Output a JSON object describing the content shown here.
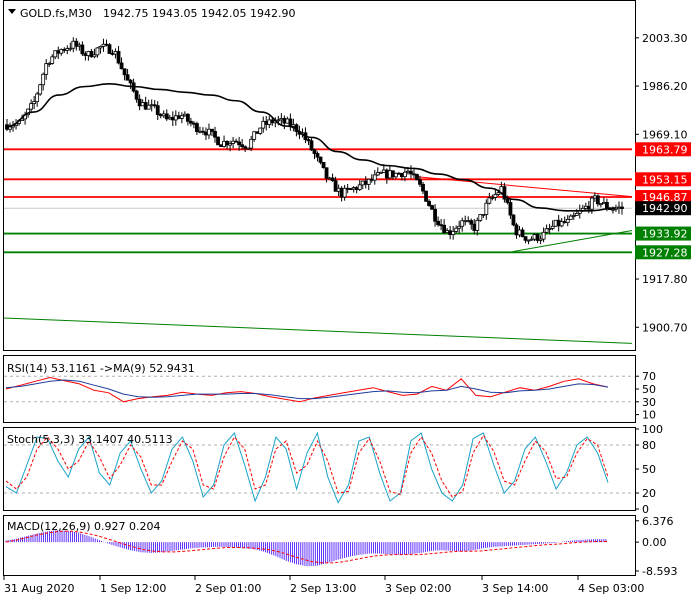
{
  "header": {
    "symbol": "GOLD.fs,M30",
    "ohlc": "1942.75 1943.05 1942.05 1942.90"
  },
  "colors": {
    "bull": "#000000",
    "bear": "#000000",
    "ma": "#000000",
    "resistance": "#ff0000",
    "support": "#008000",
    "current_price_bg": "#000000",
    "grid": "#c0c0c0",
    "rsi_main": "#1e3c9c",
    "rsi_signal": "#ff0000",
    "stoch_main": "#1aa3c9",
    "stoch_signal": "#ff0000",
    "macd_hist": "#3b00ff",
    "macd_signal": "#ff0000"
  },
  "chart_data": [
    {
      "type": "candlestick",
      "panel": "price",
      "title": "GOLD.fs,M30",
      "ylim": [
        1893,
        2016
      ],
      "y_ticks": [
        2003.3,
        1986.2,
        1969.1,
        1917.8,
        1900.7
      ],
      "x_ticks": [
        "31 Aug 2020",
        "1 Sep 12:00",
        "2 Sep 01:00",
        "2 Sep 13:00",
        "3 Sep 02:00",
        "3 Sep 14:00",
        "4 Sep 03:00"
      ],
      "anchor_prices": [
        1972.5,
        1973,
        1980,
        1995,
        1999,
        2001,
        1997,
        2000,
        1999,
        1988,
        1980,
        1978,
        1974,
        1976,
        1972,
        1970,
        1966,
        1967,
        1965,
        1972,
        1974,
        1973,
        1970,
        1962,
        1953,
        1948,
        1950,
        1952,
        1955,
        1955,
        1956,
        1950,
        1940,
        1934,
        1938,
        1936,
        1945,
        1950,
        1935,
        1932,
        1933,
        1937,
        1938,
        1942,
        1946,
        1943,
        1942.9
      ],
      "moving_average": [
        1972,
        1977,
        1983,
        1986,
        1987,
        1986,
        1985,
        1984,
        1983,
        1981,
        1977,
        1972,
        1968,
        1963,
        1960,
        1958,
        1957,
        1955,
        1953,
        1950,
        1946,
        1943,
        1942,
        1942,
        1943
      ],
      "levels": [
        {
          "name": "resistance-3",
          "value": 1963.79,
          "label": "1963.79",
          "kind": "resistance"
        },
        {
          "name": "resistance-2",
          "value": 1953.15,
          "label": "1953.15",
          "kind": "resistance"
        },
        {
          "name": "resistance-1",
          "value": 1946.87,
          "label": "1946.87",
          "kind": "resistance"
        },
        {
          "name": "support-1",
          "value": 1933.92,
          "label": "1933.92",
          "kind": "support"
        },
        {
          "name": "support-2",
          "value": 1927.28,
          "label": "1927.28",
          "kind": "support"
        }
      ],
      "current_price": {
        "value": 1942.9,
        "label": "1942.90"
      },
      "trendlines": [
        {
          "name": "descending-resistance",
          "color": "#ff0000",
          "from": [
            0.66,
            1954.0
          ],
          "to": [
            1.0,
            1947.0
          ]
        },
        {
          "name": "ascending-support",
          "color": "#008000",
          "from": [
            0.81,
            1927.5
          ],
          "to": [
            1.0,
            1935.0
          ]
        },
        {
          "name": "long-channel",
          "color": "#008000",
          "from": [
            0.0,
            1904.0
          ],
          "to": [
            1.0,
            1895.0
          ]
        }
      ]
    },
    {
      "type": "line",
      "panel": "rsi",
      "title": "RSI(14) 53.1161  ->MA(9) 52.9431",
      "ylim": [
        0,
        100
      ],
      "y_ticks": [
        70,
        50,
        30,
        10
      ],
      "levels": [
        70,
        30
      ],
      "series": [
        {
          "name": "RSI(14)",
          "values": [
            50,
            56,
            62,
            68,
            63,
            58,
            48,
            44,
            30,
            35,
            38,
            40,
            45,
            42,
            40,
            44,
            46,
            43,
            38,
            34,
            30,
            36,
            40,
            44,
            48,
            52,
            46,
            40,
            42,
            54,
            48,
            66,
            40,
            38,
            45,
            52,
            48,
            54,
            62,
            66,
            58,
            53
          ]
        },
        {
          "name": "MA(9)",
          "values": [
            52,
            54,
            58,
            62,
            64,
            62,
            56,
            50,
            42,
            38,
            37,
            38,
            40,
            42,
            42,
            42,
            43,
            43,
            41,
            38,
            35,
            35,
            37,
            40,
            43,
            46,
            47,
            45,
            44,
            47,
            48,
            54,
            50,
            45,
            44,
            47,
            48,
            50,
            54,
            58,
            57,
            53
          ]
        }
      ]
    },
    {
      "type": "line",
      "panel": "stochastic",
      "title": "Stoch(5,3,3) 33.1407 40.5113",
      "ylim": [
        0,
        100
      ],
      "y_ticks": [
        100,
        80,
        50,
        20,
        0
      ],
      "levels": [
        80,
        20
      ],
      "series": [
        {
          "name": "main",
          "values": [
            28,
            20,
            55,
            90,
            88,
            60,
            40,
            75,
            90,
            45,
            30,
            70,
            85,
            50,
            20,
            35,
            75,
            90,
            60,
            15,
            30,
            80,
            95,
            55,
            10,
            40,
            90,
            75,
            25,
            70,
            95,
            40,
            8,
            30,
            85,
            90,
            45,
            10,
            20,
            85,
            95,
            50,
            20,
            10,
            30,
            88,
            95,
            55,
            20,
            35,
            75,
            90,
            60,
            25,
            45,
            80,
            90,
            70,
            33
          ]
        },
        {
          "name": "signal",
          "values": [
            35,
            25,
            40,
            75,
            90,
            75,
            50,
            60,
            85,
            65,
            38,
            55,
            80,
            65,
            30,
            30,
            60,
            85,
            75,
            30,
            25,
            65,
            90,
            75,
            25,
            30,
            75,
            85,
            45,
            55,
            85,
            60,
            20,
            22,
            70,
            88,
            60,
            22,
            18,
            70,
            90,
            70,
            35,
            15,
            22,
            70,
            92,
            72,
            35,
            30,
            60,
            85,
            72,
            38,
            40,
            70,
            88,
            80,
            40
          ]
        }
      ]
    },
    {
      "type": "bar",
      "panel": "macd",
      "title": "MACD(12,26,9) 0.927 0.204",
      "ylim": [
        -9.5,
        7.5
      ],
      "y_ticks": [
        6.376,
        0.0,
        -8.593
      ],
      "hist": [
        0.5,
        1.0,
        1.8,
        2.6,
        3.2,
        3.6,
        3.4,
        2.8,
        1.8,
        0.6,
        -0.6,
        -1.6,
        -2.4,
        -3.0,
        -3.2,
        -3.0,
        -2.6,
        -2.2,
        -1.8,
        -1.6,
        -1.4,
        -1.4,
        -1.6,
        -1.8,
        -2.2,
        -3.0,
        -4.2,
        -5.6,
        -6.6,
        -7.2,
        -7.0,
        -6.2,
        -5.2,
        -4.4,
        -3.8,
        -3.4,
        -3.4,
        -3.6,
        -3.8,
        -3.6,
        -3.2,
        -2.6,
        -2.4,
        -2.6,
        -2.8,
        -2.4,
        -1.8,
        -1.4,
        -1.2,
        -1.0,
        -0.8,
        -0.6,
        -0.4,
        -0.2,
        0.3,
        0.6,
        0.8,
        0.9
      ],
      "signal": [
        0.0,
        0.6,
        1.4,
        2.2,
        2.8,
        3.2,
        3.3,
        3.0,
        2.4,
        1.6,
        0.6,
        -0.4,
        -1.4,
        -2.2,
        -2.7,
        -2.9,
        -2.9,
        -2.7,
        -2.4,
        -2.1,
        -1.8,
        -1.6,
        -1.6,
        -1.7,
        -1.9,
        -2.3,
        -3.0,
        -4.0,
        -5.0,
        -5.8,
        -6.2,
        -6.2,
        -5.8,
        -5.2,
        -4.6,
        -4.1,
        -3.8,
        -3.7,
        -3.7,
        -3.7,
        -3.5,
        -3.2,
        -2.9,
        -2.7,
        -2.7,
        -2.6,
        -2.3,
        -2.0,
        -1.7,
        -1.4,
        -1.1,
        -0.8,
        -0.6,
        -0.4,
        -0.1,
        0.1,
        0.2,
        0.2
      ]
    }
  ]
}
